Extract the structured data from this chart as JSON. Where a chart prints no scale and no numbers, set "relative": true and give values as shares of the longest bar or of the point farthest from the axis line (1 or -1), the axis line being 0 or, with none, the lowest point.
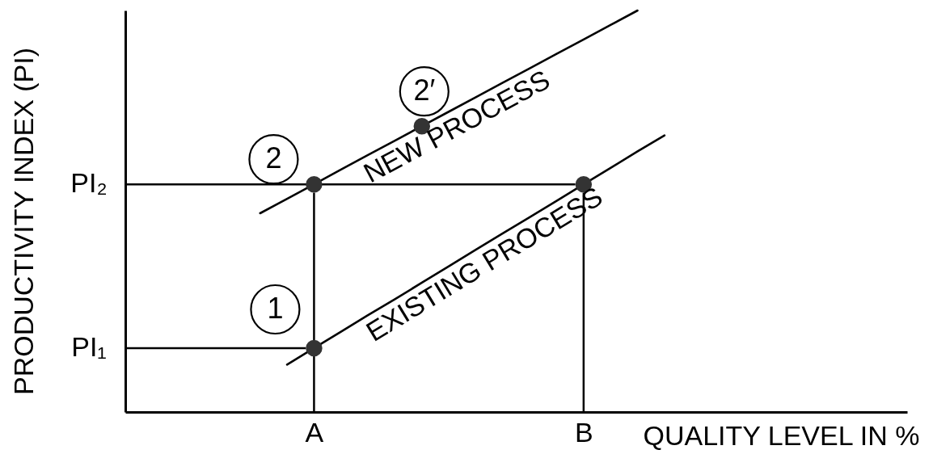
{
  "chart_data": {
    "type": "line",
    "relative": true,
    "xlabel": "QUALITY LEVEL IN %",
    "ylabel": "PRODUCTIVITY INDEX (PI)",
    "categories": [
      null,
      null,
      null,
      null,
      null,
      null,
      null,
      "A",
      null,
      null,
      null,
      null,
      null,
      null,
      null,
      null,
      null,
      "B",
      null,
      null,
      null,
      null,
      null,
      null,
      null,
      null,
      null,
      null,
      null,
      null
    ],
    "series": [
      {
        "name": "NEW PROCESS",
        "color": "#000000",
        "values": [
          null,
          null,
          null,
          null,
          null,
          0.495,
          0.531,
          0.567,
          0.604,
          0.64,
          0.676,
          0.712,
          0.748,
          0.784,
          0.82,
          0.856,
          0.892,
          0.928,
          0.964,
          1.0,
          null,
          null,
          null,
          null,
          null,
          null,
          null,
          null,
          null,
          null
        ]
      },
      {
        "name": "EXISTING PROCESS",
        "color": "#000000",
        "values": [
          null,
          null,
          null,
          null,
          null,
          null,
          0.118,
          0.159,
          0.2,
          0.241,
          0.281,
          0.322,
          0.363,
          0.404,
          0.445,
          0.485,
          0.526,
          0.567,
          0.608,
          0.649,
          0.689,
          null,
          null,
          null,
          null,
          null,
          null,
          null,
          null,
          null
        ]
      },
      {
        "type": "scatter",
        "marker": "circle",
        "color": "#333333",
        "values": [
          null,
          null,
          null,
          null,
          null,
          null,
          null,
          0.567,
          null,
          null,
          null,
          0.712,
          null,
          null,
          null,
          null,
          null,
          null,
          null,
          null,
          null,
          null,
          null,
          null,
          null,
          null,
          null,
          null,
          null,
          null
        ]
      },
      {
        "type": "scatter",
        "marker": "circle",
        "color": "#333333",
        "values": [
          null,
          null,
          null,
          null,
          null,
          null,
          null,
          0.159,
          null,
          null,
          null,
          null,
          null,
          null,
          null,
          null,
          null,
          0.567,
          null,
          null,
          null,
          null,
          null,
          null,
          null,
          null,
          null,
          null,
          null,
          null
        ]
      }
    ],
    "ref_lines": [
      {
        "axis": "y",
        "value": 0.159,
        "label": "PI₁"
      },
      {
        "axis": "y",
        "value": 0.567,
        "label": "PI₂"
      },
      {
        "axis": "x",
        "value": "A"
      },
      {
        "axis": "x",
        "value": "B"
      }
    ],
    "annotations": [
      {
        "text": "1",
        "x": "A",
        "y": 0.159
      },
      {
        "text": "2",
        "x": "A",
        "y": 0.567
      },
      {
        "text": "2′",
        "y": 0.712
      }
    ]
  }
}
